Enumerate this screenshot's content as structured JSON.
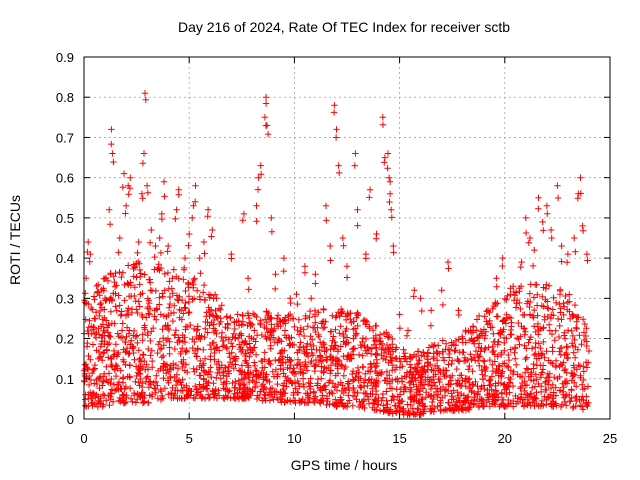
{
  "chart_data": {
    "type": "scatter",
    "title": "Day 216 of 2024, Rate Of TEC Index for receiver sctb",
    "xlabel": "GPS time / hours",
    "ylabel": "ROTI / TECUs",
    "xlim": [
      0,
      25
    ],
    "ylim": [
      0,
      0.9
    ],
    "x_ticks": [
      "0",
      "5",
      "10",
      "15",
      "20",
      "25"
    ],
    "y_ticks": [
      "0",
      "0.1",
      "0.2",
      "0.3",
      "0.4",
      "0.5",
      "0.6",
      "0.7",
      "0.8",
      "0.9"
    ],
    "grid": true,
    "marker": "+",
    "color": "#ff0000",
    "series": [
      {
        "values": [
          [
            0.0,
            0.12
          ],
          [
            0.1,
            0.35
          ],
          [
            0.2,
            0.44
          ],
          [
            0.3,
            0.41
          ],
          [
            0.5,
            0.25
          ],
          [
            0.6,
            0.06
          ],
          [
            0.8,
            0.18
          ],
          [
            1.0,
            0.3
          ],
          [
            1.2,
            0.52
          ],
          [
            1.3,
            0.72
          ],
          [
            1.35,
            0.66
          ],
          [
            1.5,
            0.28
          ],
          [
            1.7,
            0.45
          ],
          [
            1.9,
            0.61
          ],
          [
            2.0,
            0.53
          ],
          [
            2.1,
            0.58
          ],
          [
            2.2,
            0.6
          ],
          [
            2.4,
            0.38
          ],
          [
            2.6,
            0.44
          ],
          [
            2.75,
            0.56
          ],
          [
            2.85,
            0.66
          ],
          [
            2.9,
            0.81
          ],
          [
            3.0,
            0.58
          ],
          [
            3.2,
            0.47
          ],
          [
            3.4,
            0.43
          ],
          [
            3.6,
            0.45
          ],
          [
            3.7,
            0.51
          ],
          [
            3.8,
            0.59
          ],
          [
            4.0,
            0.43
          ],
          [
            4.2,
            0.35
          ],
          [
            4.4,
            0.52
          ],
          [
            4.5,
            0.57
          ],
          [
            4.8,
            0.4
          ],
          [
            5.0,
            0.46
          ],
          [
            5.2,
            0.53
          ],
          [
            5.3,
            0.58
          ],
          [
            5.5,
            0.4
          ],
          [
            5.7,
            0.44
          ],
          [
            5.9,
            0.52
          ],
          [
            6.1,
            0.47
          ],
          [
            6.3,
            0.3
          ],
          [
            7.0,
            0.41
          ],
          [
            7.3,
            0.26
          ],
          [
            7.6,
            0.51
          ],
          [
            7.8,
            0.35
          ],
          [
            8.2,
            0.53
          ],
          [
            8.3,
            0.6
          ],
          [
            8.4,
            0.63
          ],
          [
            8.6,
            0.75
          ],
          [
            8.65,
            0.8
          ],
          [
            8.7,
            0.73
          ],
          [
            8.9,
            0.5
          ],
          [
            9.1,
            0.36
          ],
          [
            9.5,
            0.4
          ],
          [
            9.8,
            0.3
          ],
          [
            10.1,
            0.31
          ],
          [
            10.5,
            0.38
          ],
          [
            10.8,
            0.3
          ],
          [
            11.0,
            0.36
          ],
          [
            11.5,
            0.53
          ],
          [
            11.7,
            0.43
          ],
          [
            11.9,
            0.78
          ],
          [
            12.0,
            0.72
          ],
          [
            12.1,
            0.63
          ],
          [
            12.3,
            0.45
          ],
          [
            12.5,
            0.38
          ],
          [
            12.9,
            0.66
          ],
          [
            13.0,
            0.52
          ],
          [
            13.4,
            0.41
          ],
          [
            13.6,
            0.57
          ],
          [
            13.9,
            0.46
          ],
          [
            14.2,
            0.75
          ],
          [
            14.3,
            0.65
          ],
          [
            14.45,
            0.66
          ],
          [
            14.5,
            0.6
          ],
          [
            14.55,
            0.56
          ],
          [
            14.6,
            0.52
          ],
          [
            14.7,
            0.43
          ],
          [
            15.0,
            0.26
          ],
          [
            15.4,
            0.22
          ],
          [
            15.7,
            0.32
          ],
          [
            16.0,
            0.3
          ],
          [
            16.5,
            0.27
          ],
          [
            17.0,
            0.32
          ],
          [
            17.3,
            0.39
          ],
          [
            17.8,
            0.27
          ],
          [
            18.5,
            0.22
          ],
          [
            19.2,
            0.27
          ],
          [
            19.6,
            0.35
          ],
          [
            19.9,
            0.4
          ],
          [
            20.4,
            0.33
          ],
          [
            20.8,
            0.39
          ],
          [
            21.0,
            0.5
          ],
          [
            21.2,
            0.45
          ],
          [
            21.4,
            0.42
          ],
          [
            21.6,
            0.55
          ],
          [
            21.8,
            0.49
          ],
          [
            22.0,
            0.53
          ],
          [
            22.2,
            0.47
          ],
          [
            22.5,
            0.58
          ],
          [
            22.7,
            0.43
          ],
          [
            23.0,
            0.41
          ],
          [
            23.3,
            0.45
          ],
          [
            23.5,
            0.56
          ],
          [
            23.6,
            0.6
          ],
          [
            23.7,
            0.48
          ],
          [
            23.9,
            0.41
          ]
        ]
      }
    ],
    "bands": [
      [
        0,
        0.03,
        0.3
      ],
      [
        1,
        0.03,
        0.36
      ],
      [
        2,
        0.04,
        0.38
      ],
      [
        3,
        0.04,
        0.4
      ],
      [
        4,
        0.05,
        0.38
      ],
      [
        5,
        0.05,
        0.37
      ],
      [
        6,
        0.05,
        0.33
      ],
      [
        7,
        0.05,
        0.25
      ],
      [
        8,
        0.05,
        0.27
      ],
      [
        9,
        0.04,
        0.27
      ],
      [
        10,
        0.04,
        0.26
      ],
      [
        11,
        0.04,
        0.27
      ],
      [
        12,
        0.03,
        0.28
      ],
      [
        13,
        0.03,
        0.27
      ],
      [
        14,
        0.02,
        0.24
      ],
      [
        15,
        0.01,
        0.18
      ],
      [
        16,
        0.01,
        0.17
      ],
      [
        17,
        0.02,
        0.2
      ],
      [
        18,
        0.02,
        0.22
      ],
      [
        19,
        0.03,
        0.27
      ],
      [
        20,
        0.03,
        0.32
      ],
      [
        21,
        0.03,
        0.34
      ],
      [
        22,
        0.03,
        0.34
      ],
      [
        23,
        0.03,
        0.32
      ],
      [
        24,
        0.02,
        0.22
      ]
    ]
  }
}
